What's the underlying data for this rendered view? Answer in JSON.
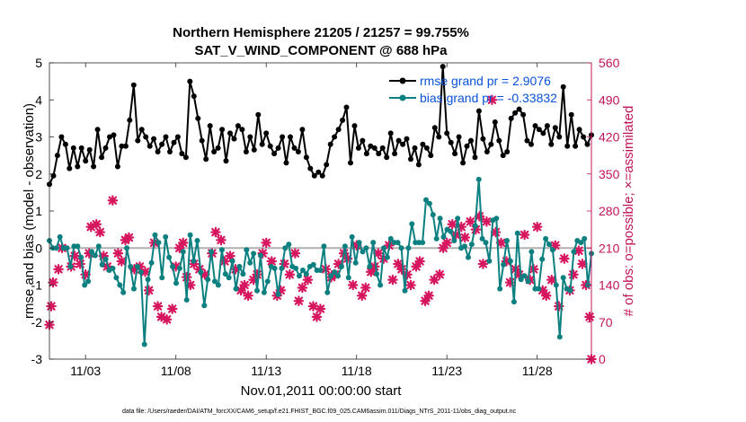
{
  "chart_data": {
    "type": "line",
    "title": "Northern Hemisphere 21205 / 21257 = 99.755%",
    "subtitle": "SAT_V_WIND_COMPONENT @ 688 hPa",
    "xlabel": "Nov.01,2011 00:00:00 start",
    "ylabel_left": "rmse and bias (model - observation)",
    "ylabel_right": "# of obs: o=possible; ×=assimilated",
    "footer": "data file: /Users/raeder/DAI/ATM_forcXX/CAM6_setup/f.e21.FHIST_BGC.f09_025.CAM6assim.011/Diags_NTrS_2011-11/obs_diag_output.nc",
    "x_tick_labels": [
      "11/03",
      "11/08",
      "11/13",
      "11/18",
      "11/23",
      "11/28"
    ],
    "x_ticks": [
      3,
      8,
      13,
      18,
      23,
      28
    ],
    "xlim": [
      1,
      31
    ],
    "ylim_left": [
      -3,
      5
    ],
    "left_ticks": [
      "-3",
      "-2",
      "-1",
      "0",
      "1",
      "2",
      "3",
      "4",
      "5"
    ],
    "ylim_right": [
      0,
      560
    ],
    "right_ticks": [
      "0",
      "70",
      "140",
      "210",
      "280",
      "350",
      "420",
      "490",
      "560"
    ],
    "colors": {
      "rmse": "#000000",
      "bias": "#0c8080",
      "obs": "#d6175f",
      "right_axis": "#c0145a",
      "zero_line": "#b0b0b0",
      "legend_text": "#0a52d8"
    },
    "series": [
      {
        "name": "rmse grand pr = 2.9076",
        "values": [
          1.72,
          1.95,
          2.5,
          3.0,
          2.8,
          2.15,
          2.7,
          2.2,
          2.7,
          2.35,
          2.65,
          2.2,
          3.2,
          2.45,
          2.7,
          3.0,
          3.05,
          2.2,
          2.75,
          2.75,
          3.45,
          4.4,
          2.9,
          3.2,
          3.0,
          2.75,
          2.95,
          2.6,
          2.8,
          3.0,
          2.6,
          2.85,
          3.0,
          2.55,
          2.45,
          4.5,
          4.1,
          3.5,
          2.9,
          2.4,
          3.3,
          2.6,
          2.7,
          3.2,
          2.35,
          3.1,
          2.95,
          3.3,
          3.2,
          2.6,
          3.0,
          2.65,
          3.6,
          2.8,
          3.1,
          2.75,
          2.55,
          2.7,
          3.0,
          2.3,
          3.0,
          2.7,
          2.6,
          3.2,
          2.45,
          2.15,
          1.95,
          2.05,
          1.95,
          2.25,
          2.8,
          3.0,
          3.2,
          3.45,
          3.8,
          2.3,
          3.3,
          2.7,
          2.9,
          2.55,
          2.75,
          2.7,
          2.55,
          2.7,
          2.45,
          3.1,
          2.55,
          2.9,
          2.8,
          2.95,
          2.4,
          2.7,
          2.25,
          2.8,
          2.7,
          2.5,
          3.25,
          3.0,
          4.9,
          3.1,
          2.85,
          2.55,
          3.0,
          2.3,
          2.75,
          2.9,
          2.45,
          3.7,
          2.95,
          2.6,
          2.8,
          3.4,
          2.9,
          2.5,
          2.6,
          3.5,
          3.65,
          3.75,
          3.6,
          2.9,
          2.8,
          3.3,
          3.2,
          3.1,
          3.3,
          2.8,
          3.25,
          3.0,
          4.35,
          2.75,
          3.6,
          2.75,
          3.2,
          3.0,
          2.8,
          3.05
        ],
        "color": "#000000",
        "marker": "circle"
      },
      {
        "name": "bias grand pr = -0.33832",
        "values": [
          0.2,
          0.0,
          0.0,
          0.3,
          0.0,
          0.0,
          -0.5,
          0.05,
          0.05,
          -0.25,
          -1.0,
          -0.9,
          -0.1,
          -0.2,
          0.05,
          -0.45,
          -0.3,
          -0.6,
          -0.55,
          -0.8,
          -1.0,
          -1.2,
          0.0,
          -0.5,
          -1.1,
          -0.5,
          -0.65,
          -2.6,
          -0.85,
          -0.4,
          0.35,
          0.15,
          -0.8,
          0.3,
          -0.25,
          -0.5,
          -0.95,
          -0.55,
          -0.1,
          -1.4,
          0.35,
          -0.35,
          0.2,
          -0.65,
          -1.55,
          -0.85,
          -0.1,
          -0.9,
          -1.0,
          -0.05,
          -0.7,
          -0.8,
          -0.35,
          -1.1,
          -0.5,
          -0.7,
          -0.05,
          -0.4,
          -0.15,
          -1.15,
          -0.2,
          -1.2,
          -0.9,
          -0.5,
          -0.55,
          -1.25,
          -0.55,
          0.0,
          0.1,
          -0.5,
          -0.55,
          -0.75,
          -0.6,
          -0.7,
          -0.5,
          -0.45,
          -0.6,
          -0.6,
          0.05,
          -1.2,
          -0.75,
          -0.65,
          -0.75,
          -0.5,
          0.05,
          -0.8,
          0.3,
          -0.4,
          0.15,
          -0.1,
          0.0,
          -0.5,
          0.15,
          -0.7,
          -1.0,
          0.0,
          -0.25,
          0.25,
          0.15,
          0.15,
          0.0,
          -1.15,
          0.0,
          0.65,
          0.15,
          0.15,
          0.15,
          1.3,
          1.2,
          0.9,
          0.25,
          0.8,
          0.3,
          0.5,
          0.45,
          0.2,
          0.8,
          0.0,
          0.05,
          -0.25,
          0.1,
          0.6,
          1.85,
          0.25,
          0.15,
          -0.35,
          0.75,
          0.8,
          -1.1,
          -0.45,
          0.2,
          -0.35,
          -1.45,
          0.4,
          -0.85,
          -0.75,
          -0.9,
          -0.1,
          -1.1,
          -1.1,
          -0.3,
          0.25,
          0.1,
          -0.05,
          -1.0,
          -2.4,
          -0.8,
          -1.1,
          -1.15,
          -0.1,
          0.2,
          0.15,
          0.25,
          -1.0,
          -0.15
        ],
        "color": "#0c8080",
        "marker": "circle"
      }
    ],
    "obs_assimilated": [
      [
        1.0,
        65
      ],
      [
        1.1,
        100
      ],
      [
        1.2,
        145
      ],
      [
        1.5,
        170
      ],
      [
        1.7,
        210
      ],
      [
        2.2,
        175
      ],
      [
        2.4,
        195
      ],
      [
        2.7,
        180
      ],
      [
        3.0,
        160
      ],
      [
        3.2,
        200
      ],
      [
        3.3,
        250
      ],
      [
        3.6,
        255
      ],
      [
        3.8,
        240
      ],
      [
        4.0,
        195
      ],
      [
        4.2,
        175
      ],
      [
        4.5,
        300
      ],
      [
        4.8,
        200
      ],
      [
        5.0,
        185
      ],
      [
        5.2,
        225
      ],
      [
        5.4,
        230
      ],
      [
        5.7,
        170
      ],
      [
        6.0,
        175
      ],
      [
        6.3,
        165
      ],
      [
        6.5,
        130
      ],
      [
        6.8,
        220
      ],
      [
        7.0,
        100
      ],
      [
        7.2,
        80
      ],
      [
        7.5,
        75
      ],
      [
        7.8,
        95
      ],
      [
        8.0,
        175
      ],
      [
        8.2,
        210
      ],
      [
        8.4,
        220
      ],
      [
        8.6,
        155
      ],
      [
        8.8,
        140
      ],
      [
        9.0,
        180
      ],
      [
        9.3,
        170
      ],
      [
        9.6,
        160
      ],
      [
        10.0,
        200
      ],
      [
        10.2,
        240
      ],
      [
        10.5,
        225
      ],
      [
        10.7,
        185
      ],
      [
        11.0,
        195
      ],
      [
        11.3,
        170
      ],
      [
        11.6,
        130
      ],
      [
        11.8,
        140
      ],
      [
        12.0,
        120
      ],
      [
        12.3,
        150
      ],
      [
        12.5,
        160
      ],
      [
        12.8,
        200
      ],
      [
        13.0,
        220
      ],
      [
        13.3,
        185
      ],
      [
        13.6,
        120
      ],
      [
        13.8,
        130
      ],
      [
        14.0,
        180
      ],
      [
        14.3,
        160
      ],
      [
        14.6,
        200
      ],
      [
        14.8,
        110
      ],
      [
        15.0,
        135
      ],
      [
        15.3,
        150
      ],
      [
        15.6,
        100
      ],
      [
        15.8,
        80
      ],
      [
        16.0,
        95
      ],
      [
        16.3,
        170
      ],
      [
        16.6,
        155
      ],
      [
        16.8,
        160
      ],
      [
        17.0,
        180
      ],
      [
        17.3,
        200
      ],
      [
        17.5,
        190
      ],
      [
        17.8,
        140
      ],
      [
        18.0,
        215
      ],
      [
        18.3,
        120
      ],
      [
        18.5,
        135
      ],
      [
        18.8,
        165
      ],
      [
        19.0,
        175
      ],
      [
        19.2,
        200
      ],
      [
        19.5,
        190
      ],
      [
        19.8,
        215
      ],
      [
        20.0,
        150
      ],
      [
        20.3,
        180
      ],
      [
        20.5,
        170
      ],
      [
        20.8,
        160
      ],
      [
        21.0,
        140
      ],
      [
        21.3,
        175
      ],
      [
        21.5,
        185
      ],
      [
        21.8,
        110
      ],
      [
        22.0,
        120
      ],
      [
        22.3,
        150
      ],
      [
        22.6,
        160
      ],
      [
        22.8,
        210
      ],
      [
        23.0,
        220
      ],
      [
        23.3,
        255
      ],
      [
        23.5,
        235
      ],
      [
        23.8,
        250
      ],
      [
        24.0,
        230
      ],
      [
        24.3,
        260
      ],
      [
        24.6,
        245
      ],
      [
        24.8,
        270
      ],
      [
        25.0,
        180
      ],
      [
        25.2,
        260
      ],
      [
        25.5,
        490
      ],
      [
        25.7,
        240
      ],
      [
        26.0,
        220
      ],
      [
        26.3,
        185
      ],
      [
        26.5,
        145
      ],
      [
        26.8,
        170
      ],
      [
        27.0,
        160
      ],
      [
        27.3,
        235
      ],
      [
        27.6,
        150
      ],
      [
        27.8,
        170
      ],
      [
        28.0,
        250
      ],
      [
        28.3,
        130
      ],
      [
        28.5,
        120
      ],
      [
        28.8,
        150
      ],
      [
        29.0,
        215
      ],
      [
        29.2,
        100
      ],
      [
        29.5,
        190
      ],
      [
        29.8,
        130
      ],
      [
        30.0,
        160
      ],
      [
        30.3,
        205
      ],
      [
        30.5,
        180
      ],
      [
        30.7,
        140
      ],
      [
        30.9,
        80
      ],
      [
        31.0,
        0
      ]
    ],
    "legend": [
      {
        "label": "rmse grand pr = 2.9076",
        "series": 0
      },
      {
        "label": "bias grand pr = -0.33832",
        "series": 1
      }
    ]
  }
}
